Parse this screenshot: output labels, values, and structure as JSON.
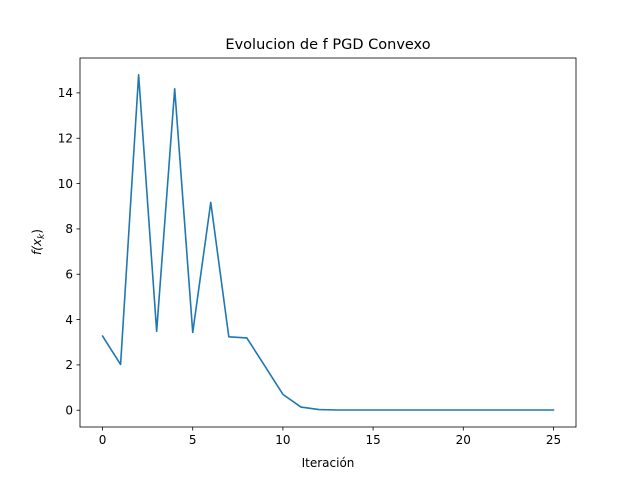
{
  "chart_data": {
    "type": "line",
    "title": "Evolucion de f PGD Convexo",
    "xlabel": "Iteración",
    "ylabel": "f(x",
    "ylabel_subscript": "k",
    "ylabel_suffix": ")",
    "xlim": [
      -1.25,
      26.25
    ],
    "ylim": [
      -0.74,
      15.54
    ],
    "xticks": [
      0,
      5,
      10,
      15,
      20,
      25
    ],
    "yticks": [
      0,
      2,
      4,
      6,
      8,
      10,
      12,
      14
    ],
    "grid": false,
    "series": [
      {
        "color": "#1f77b4",
        "x": [
          0,
          1,
          2,
          3,
          4,
          5,
          6,
          7,
          8,
          9,
          10,
          11,
          12,
          13,
          14,
          15,
          16,
          17,
          18,
          19,
          20,
          21,
          22,
          23,
          24,
          25
        ],
        "values": [
          3.27,
          2.02,
          14.8,
          3.48,
          14.18,
          3.43,
          9.17,
          3.24,
          3.19,
          1.95,
          0.7,
          0.14,
          0.03,
          0.01,
          0.01,
          0.01,
          0.01,
          0.01,
          0.01,
          0.01,
          0.01,
          0.01,
          0.01,
          0.01,
          0.01,
          0.01
        ]
      }
    ]
  }
}
